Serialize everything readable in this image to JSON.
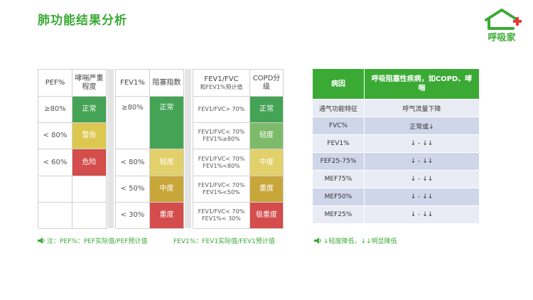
{
  "title": "肺功能结果分析",
  "logo": {
    "text": "呼吸家",
    "color": "#3aaa35"
  },
  "pef_table": {
    "header": [
      "PEF%",
      "哮喘严重程度"
    ],
    "rows": [
      {
        "range": "≥80%",
        "level": "正常"
      },
      {
        "range": "< 80%",
        "level": "警告"
      },
      {
        "range": "< 60%",
        "level": "危险"
      }
    ]
  },
  "fev1_table": {
    "header": [
      "FEV1%",
      "阻塞指数"
    ],
    "rows": [
      {
        "range": "≥80%",
        "level": "正常"
      },
      {
        "range": "< 80%",
        "level": "轻度"
      },
      {
        "range": "< 50%",
        "level": "中度"
      },
      {
        "range": "< 30%",
        "level": "重度"
      }
    ]
  },
  "copd_table": {
    "header": [
      "FEV1/FVC和FEV1%预计值",
      "COPD分级"
    ],
    "header_line1": "FEV1/FVC",
    "header_line2": "和FEV1%预计值",
    "rows": [
      {
        "cond1": "FEV1/FVC> 70%",
        "cond2": "",
        "level": "正常"
      },
      {
        "cond1": "FEV1/FVC< 70%",
        "cond2": "FEV1%≥80%",
        "level": "轻度"
      },
      {
        "cond1": "FEV1/FVC< 70%",
        "cond2": "FEV1%<80%",
        "level": "中度"
      },
      {
        "cond1": "FEV1/FVC< 70%",
        "cond2": "FEV1%<50%",
        "level": "重度"
      },
      {
        "cond1": "FEV1/FVC< 70%",
        "cond2": "FEV1%< 30%",
        "level": "极重度"
      }
    ]
  },
  "notes": {
    "left": "注：PEF%：PEF实际值/PEF预计值",
    "mid": "FEV1%：FEV1实际值/FEV1预计值",
    "right": "↓轻度降低，↓↓明显降低"
  },
  "right_table": {
    "header": [
      "病因",
      "呼吸阻塞性疾病，如COPD、哮喘"
    ],
    "rows": [
      [
        "通气功能特征",
        "呼气流量下降"
      ],
      [
        "FVC%",
        "正常或↓"
      ],
      [
        "FEV1%",
        "↓ - ↓↓"
      ],
      [
        "FEF25-75%",
        "↓ - ↓↓"
      ],
      [
        "MEF75%",
        "↓ - ↓↓"
      ],
      [
        "MEF50%",
        "↓ - ↓↓"
      ],
      [
        "MEF25%",
        "↓ - ↓↓"
      ]
    ]
  },
  "colors": {
    "accent": "#3aaa35",
    "green": "#45a355",
    "yellow": "#dcc850",
    "red": "#d44c4c",
    "table_row_a": "#e9ebf5",
    "table_row_b": "#d0d6ea"
  }
}
